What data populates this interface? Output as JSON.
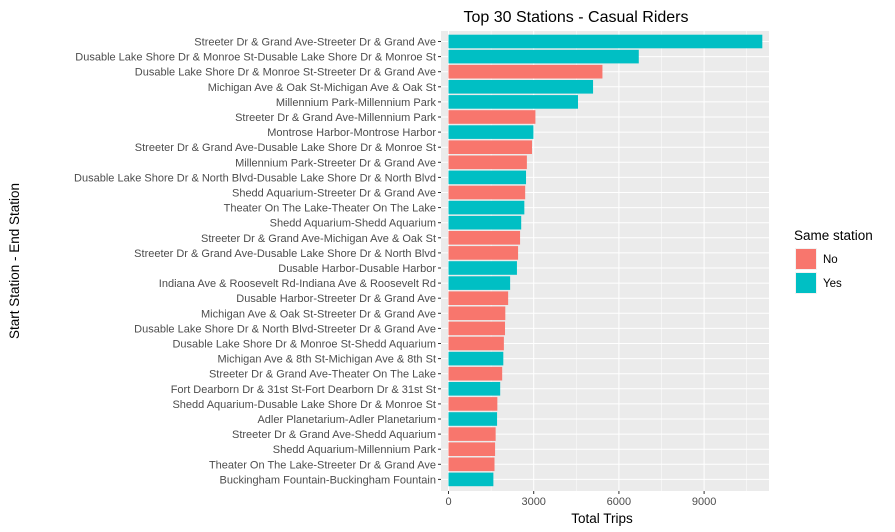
{
  "chart_data": {
    "type": "bar",
    "orientation": "horizontal",
    "title": "Top 30 Stations - Casual Riders",
    "xlabel": "Total Trips",
    "ylabel": "Start Station - End Station",
    "xlim": [
      0,
      11400
    ],
    "xticks": [
      0,
      3000,
      6000,
      9000
    ],
    "xtick_labels": [
      "0",
      "3000",
      "6000",
      "9000"
    ],
    "grid": true,
    "legend": {
      "title": "Same station",
      "position": "right",
      "entries": [
        {
          "label": "No",
          "color": "#F8766D"
        },
        {
          "label": "Yes",
          "color": "#00BFC4"
        }
      ]
    },
    "categories": [
      "Streeter Dr & Grand Ave-Streeter Dr & Grand Ave",
      "Dusable Lake Shore Dr & Monroe St-Dusable Lake Shore Dr & Monroe St",
      "Dusable Lake Shore Dr & Monroe St-Streeter Dr & Grand Ave",
      "Michigan Ave & Oak St-Michigan Ave & Oak St",
      "Millennium Park-Millennium Park",
      "Streeter Dr & Grand Ave-Millennium Park",
      "Montrose Harbor-Montrose Harbor",
      "Streeter Dr & Grand Ave-Dusable Lake Shore Dr & Monroe St",
      "Millennium Park-Streeter Dr & Grand Ave",
      "Dusable Lake Shore Dr & North Blvd-Dusable Lake Shore Dr & North Blvd",
      "Shedd Aquarium-Streeter Dr & Grand Ave",
      "Theater On The Lake-Theater On The Lake",
      "Shedd Aquarium-Shedd Aquarium",
      "Streeter Dr & Grand Ave-Michigan Ave & Oak St",
      "Streeter Dr & Grand Ave-Dusable Lake Shore Dr & North Blvd",
      "Dusable Harbor-Dusable Harbor",
      "Indiana Ave & Roosevelt Rd-Indiana Ave & Roosevelt Rd",
      "Dusable Harbor-Streeter Dr & Grand Ave",
      "Michigan Ave & Oak St-Streeter Dr & Grand Ave",
      "Dusable Lake Shore Dr & North Blvd-Streeter Dr & Grand Ave",
      "Dusable Lake Shore Dr & Monroe St-Shedd Aquarium",
      "Michigan Ave & 8th St-Michigan Ave & 8th St",
      "Streeter Dr & Grand Ave-Theater On The Lake",
      "Fort Dearborn Dr & 31st St-Fort Dearborn Dr & 31st St",
      "Shedd Aquarium-Dusable Lake Shore Dr & Monroe St",
      "Adler Planetarium-Adler Planetarium",
      "Streeter Dr & Grand Ave-Shedd Aquarium",
      "Shedd Aquarium-Millennium Park",
      "Theater On The Lake-Streeter Dr & Grand Ave",
      "Buckingham Fountain-Buckingham Fountain"
    ],
    "values": [
      11050,
      6700,
      5420,
      5090,
      4560,
      3060,
      2990,
      2940,
      2760,
      2730,
      2700,
      2670,
      2560,
      2520,
      2450,
      2410,
      2170,
      2100,
      2000,
      1990,
      1950,
      1930,
      1890,
      1820,
      1720,
      1710,
      1660,
      1640,
      1620,
      1580
    ],
    "same_station": [
      "Yes",
      "Yes",
      "No",
      "Yes",
      "Yes",
      "No",
      "Yes",
      "No",
      "No",
      "Yes",
      "No",
      "Yes",
      "Yes",
      "No",
      "No",
      "Yes",
      "Yes",
      "No",
      "No",
      "No",
      "No",
      "Yes",
      "No",
      "Yes",
      "No",
      "Yes",
      "No",
      "No",
      "No",
      "Yes"
    ]
  }
}
